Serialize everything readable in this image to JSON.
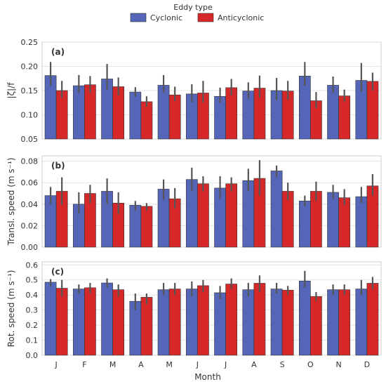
{
  "legend": {
    "title": "Eddy type",
    "entries": [
      {
        "label": "Cyclonic",
        "color": "#5566b8"
      },
      {
        "label": "Anticyclonic",
        "color": "#d62828"
      }
    ]
  },
  "xlabel": "Month",
  "chart_data": [
    {
      "type": "bar",
      "panel": "(a)",
      "ylabel": "|ζ|/f",
      "ylim": [
        0.05,
        0.25
      ],
      "yticks": [
        "0.05",
        "0.10",
        "0.15",
        "0.20",
        "0.25"
      ],
      "categories": [
        "J",
        "F",
        "M",
        "A",
        "M",
        "J",
        "J",
        "A",
        "S",
        "O",
        "N",
        "D"
      ],
      "series": [
        {
          "name": "Cyclonic",
          "values": [
            0.181,
            0.16,
            0.174,
            0.147,
            0.161,
            0.143,
            0.138,
            0.149,
            0.15,
            0.18,
            0.161,
            0.171
          ],
          "err": [
            [
              0.16,
              0.209
            ],
            [
              0.145,
              0.182
            ],
            [
              0.152,
              0.205
            ],
            [
              0.137,
              0.157
            ],
            [
              0.146,
              0.182
            ],
            [
              0.126,
              0.163
            ],
            [
              0.124,
              0.156
            ],
            [
              0.133,
              0.167
            ],
            [
              0.13,
              0.176
            ],
            [
              0.16,
              0.209
            ],
            [
              0.145,
              0.179
            ],
            [
              0.148,
              0.207
            ]
          ]
        },
        {
          "name": "Anticyclonic",
          "values": [
            0.15,
            0.162,
            0.158,
            0.127,
            0.141,
            0.145,
            0.156,
            0.155,
            0.149,
            0.129,
            0.139,
            0.169
          ],
          "err": [
            [
              0.135,
              0.17
            ],
            [
              0.145,
              0.18
            ],
            [
              0.14,
              0.177
            ],
            [
              0.117,
              0.138
            ],
            [
              0.128,
              0.158
            ],
            [
              0.125,
              0.17
            ],
            [
              0.14,
              0.174
            ],
            [
              0.135,
              0.181
            ],
            [
              0.131,
              0.17
            ],
            [
              0.114,
              0.147
            ],
            [
              0.127,
              0.152
            ],
            [
              0.15,
              0.187
            ]
          ]
        }
      ]
    },
    {
      "type": "bar",
      "panel": "(b)",
      "ylabel": "Transl. speed (m s⁻¹)",
      "ylim": [
        0.0,
        0.085
      ],
      "yticks": [
        "0.00",
        "0.02",
        "0.04",
        "0.06",
        "0.08"
      ],
      "categories": [
        "J",
        "F",
        "M",
        "A",
        "M",
        "J",
        "J",
        "A",
        "S",
        "O",
        "N",
        "D"
      ],
      "series": [
        {
          "name": "Cyclonic",
          "values": [
            0.048,
            0.04,
            0.052,
            0.039,
            0.054,
            0.063,
            0.055,
            0.062,
            0.071,
            0.043,
            0.051,
            0.047
          ],
          "err": [
            [
              0.04,
              0.056
            ],
            [
              0.031,
              0.051
            ],
            [
              0.04,
              0.064
            ],
            [
              0.034,
              0.043
            ],
            [
              0.044,
              0.063
            ],
            [
              0.052,
              0.074
            ],
            [
              0.045,
              0.066
            ],
            [
              0.052,
              0.073
            ],
            [
              0.065,
              0.076
            ],
            [
              0.038,
              0.048
            ],
            [
              0.045,
              0.058
            ],
            [
              0.041,
              0.056
            ]
          ]
        },
        {
          "name": "Anticyclonic",
          "values": [
            0.052,
            0.05,
            0.041,
            0.038,
            0.045,
            0.059,
            0.059,
            0.064,
            0.052,
            0.052,
            0.046,
            0.057
          ],
          "err": [
            [
              0.039,
              0.065
            ],
            [
              0.041,
              0.058
            ],
            [
              0.031,
              0.051
            ],
            [
              0.034,
              0.041
            ],
            [
              0.036,
              0.055
            ],
            [
              0.052,
              0.066
            ],
            [
              0.052,
              0.065
            ],
            [
              0.048,
              0.081
            ],
            [
              0.044,
              0.06
            ],
            [
              0.043,
              0.061
            ],
            [
              0.039,
              0.054
            ],
            [
              0.048,
              0.068
            ]
          ]
        }
      ]
    },
    {
      "type": "bar",
      "panel": "(c)",
      "ylabel": "Rot. speed (m s⁻¹)",
      "ylim": [
        0.0,
        0.62
      ],
      "yticks": [
        "0.0",
        "0.1",
        "0.2",
        "0.3",
        "0.4",
        "0.5",
        "0.6"
      ],
      "categories": [
        "J",
        "F",
        "M",
        "A",
        "M",
        "J",
        "J",
        "A",
        "S",
        "O",
        "N",
        "D"
      ],
      "series": [
        {
          "name": "Cyclonic",
          "values": [
            0.485,
            0.44,
            0.48,
            0.358,
            0.435,
            0.44,
            0.415,
            0.435,
            0.44,
            0.493,
            0.435,
            0.44
          ],
          "err": [
            [
              0.455,
              0.505
            ],
            [
              0.41,
              0.47
            ],
            [
              0.45,
              0.51
            ],
            [
              0.3,
              0.41
            ],
            [
              0.4,
              0.48
            ],
            [
              0.39,
              0.49
            ],
            [
              0.37,
              0.46
            ],
            [
              0.39,
              0.48
            ],
            [
              0.41,
              0.48
            ],
            [
              0.45,
              0.56
            ],
            [
              0.4,
              0.47
            ],
            [
              0.4,
              0.5
            ]
          ]
        },
        {
          "name": "Anticyclonic",
          "values": [
            0.445,
            0.448,
            0.435,
            0.385,
            0.44,
            0.462,
            0.473,
            0.478,
            0.432,
            0.39,
            0.435,
            0.478
          ]
        }
      ],
      "err_anti": [
        [
          0.39,
          0.5
        ],
        [
          0.41,
          0.48
        ],
        [
          0.39,
          0.47
        ],
        [
          0.34,
          0.41
        ],
        [
          0.4,
          0.48
        ],
        [
          0.42,
          0.5
        ],
        [
          0.44,
          0.51
        ],
        [
          0.42,
          0.53
        ],
        [
          0.4,
          0.46
        ],
        [
          0.36,
          0.42
        ],
        [
          0.4,
          0.47
        ],
        [
          0.44,
          0.52
        ]
      ]
    }
  ]
}
